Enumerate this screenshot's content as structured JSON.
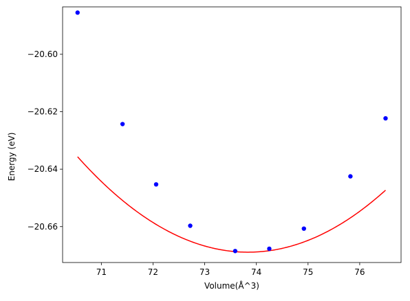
{
  "chart_data": {
    "type": "line",
    "title": "",
    "xlabel": "Volume(Å^3)",
    "ylabel": "Energy (eV)",
    "xlim": [
      70.25,
      76.8
    ],
    "ylim": [
      -20.6725,
      -20.5835
    ],
    "xticks": [
      71,
      72,
      73,
      74,
      75,
      76
    ],
    "yticks": [
      -20.6,
      -20.62,
      -20.64,
      -20.66
    ],
    "xtick_labels": [
      "71",
      "72",
      "73",
      "74",
      "75",
      "76"
    ],
    "ytick_labels": [
      "−20.60",
      "−20.62",
      "−20.64",
      "−20.66"
    ],
    "grid": false,
    "legend": false,
    "series": [
      {
        "kind": "scatter",
        "color": "#0000ff",
        "x": [
          70.54,
          71.41,
          72.06,
          72.72,
          73.59,
          74.25,
          74.92,
          75.82,
          76.5
        ],
        "y": [
          -20.5855,
          -20.6243,
          -20.6453,
          -20.6597,
          -20.6685,
          -20.6677,
          -20.6607,
          -20.6425,
          -20.6223
        ]
      },
      {
        "kind": "fit-curve",
        "color": "#ff0000",
        "vertex_x": 73.84,
        "vertex_y": -20.6689,
        "curvature": 0.00305,
        "x_range": [
          70.54,
          76.5
        ]
      }
    ]
  }
}
